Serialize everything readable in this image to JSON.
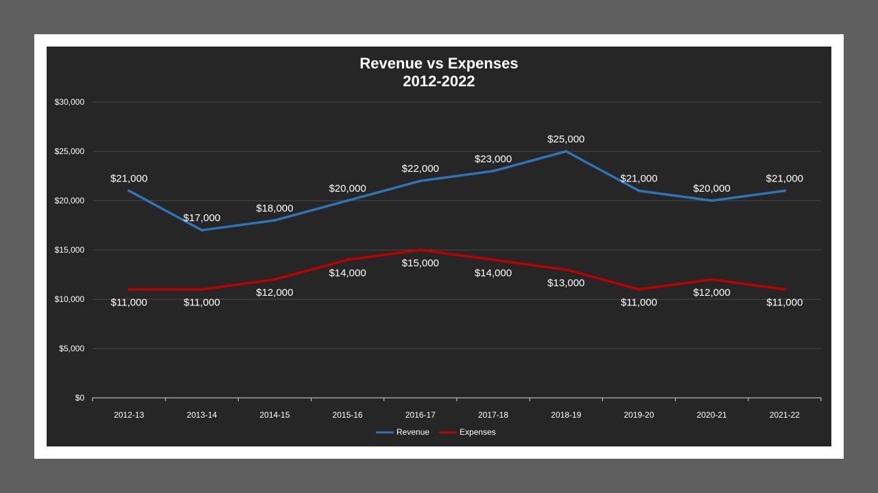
{
  "chart_data": {
    "type": "line",
    "title_line1": "Revenue vs Expenses",
    "title_line2": "2012-2022",
    "categories": [
      "2012-13",
      "2013-14",
      "2014-15",
      "2015-16",
      "2016-17",
      "2017-18",
      "2018-19",
      "2019-20",
      "2020-21",
      "2021-22"
    ],
    "series": [
      {
        "name": "Revenue",
        "color": "#2e75b6",
        "values": [
          21000,
          17000,
          18000,
          20000,
          22000,
          23000,
          25000,
          21000,
          20000,
          21000
        ],
        "labels": [
          "$21,000",
          "$17,000",
          "$18,000",
          "$20,000",
          "$22,000",
          "$23,000",
          "$25,000",
          "$21,000",
          "$20,000",
          "$21,000"
        ]
      },
      {
        "name": "Expenses",
        "color": "#c00000",
        "values": [
          11000,
          11000,
          12000,
          14000,
          15000,
          14000,
          13000,
          11000,
          12000,
          11000
        ],
        "labels": [
          "$11,000",
          "$11,000",
          "$12,000",
          "$14,000",
          "$15,000",
          "$14,000",
          "$13,000",
          "$11,000",
          "$12,000",
          "$11,000"
        ]
      }
    ],
    "ylim": [
      0,
      30000
    ],
    "yticks": [
      0,
      5000,
      10000,
      15000,
      20000,
      25000,
      30000
    ],
    "ytick_labels": [
      "$0",
      "$5,000",
      "$10,000",
      "$15,000",
      "$20,000",
      "$25,000",
      "$30,000"
    ],
    "grid": true,
    "legend_position": "bottom",
    "background_color": "#262626",
    "text_color": "#ffffff"
  }
}
